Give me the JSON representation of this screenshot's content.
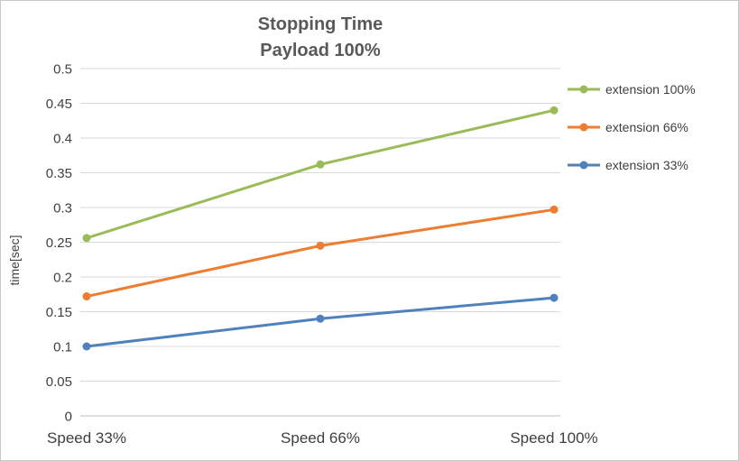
{
  "chart_data": {
    "type": "line",
    "title": "Stopping Time",
    "subtitle": "Payload 100%",
    "xlabel": "",
    "ylabel": "time[sec]",
    "categories": [
      "Speed 33%",
      "Speed 66%",
      "Speed 100%"
    ],
    "series": [
      {
        "name": "extension 100%",
        "color": "#9BBB59",
        "values": [
          0.256,
          0.362,
          0.44
        ]
      },
      {
        "name": "extension 66%",
        "color": "#ED7D31",
        "values": [
          0.172,
          0.245,
          0.297
        ]
      },
      {
        "name": "extension 33%",
        "color": "#4F81BD",
        "values": [
          0.1,
          0.14,
          0.17
        ]
      }
    ],
    "ylim": [
      0,
      0.5
    ],
    "ytick_step": 0.05,
    "grid": true,
    "gridline_color": "#D9D9D9",
    "axis_line_color": "#BFBFBF",
    "legend_position": "right"
  }
}
